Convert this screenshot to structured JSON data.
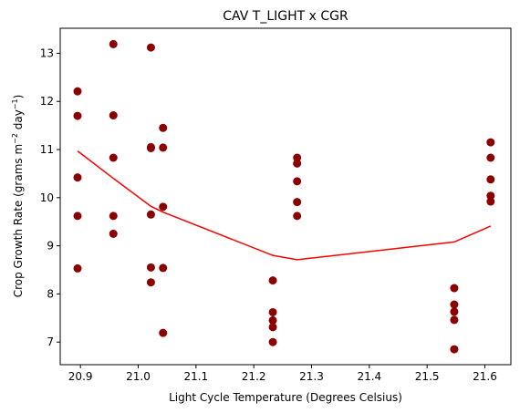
{
  "chart_data": {
    "type": "scatter",
    "title": "CAV T_LIGHT x CGR",
    "xlabel": "Light Cycle Temperature (Degrees Celsius)",
    "ylabel_main": "Crop Growth Rate (grams m",
    "ylabel_sup1": "−2",
    "ylabel_mid": " day",
    "ylabel_sup2": "−1",
    "ylabel_end": ")",
    "xlim": [
      20.865,
      21.645
    ],
    "ylim": [
      6.53,
      13.52
    ],
    "x_ticks": [
      20.9,
      21.0,
      21.1,
      21.2,
      21.3,
      21.4,
      21.5,
      21.6
    ],
    "x_tick_labels": [
      "20.9",
      "21.0",
      "21.1",
      "21.2",
      "21.3",
      "21.4",
      "21.5",
      "21.6"
    ],
    "y_ticks": [
      7,
      8,
      9,
      10,
      11,
      12,
      13
    ],
    "y_tick_labels": [
      "7",
      "8",
      "9",
      "10",
      "11",
      "12",
      "13"
    ],
    "grid": false,
    "series": [
      {
        "type": "scatter",
        "color": "#8b0000",
        "points": [
          [
            20.895,
            12.21
          ],
          [
            20.895,
            11.7
          ],
          [
            20.895,
            10.42
          ],
          [
            20.895,
            9.62
          ],
          [
            20.895,
            8.53
          ],
          [
            20.957,
            13.19
          ],
          [
            20.957,
            11.71
          ],
          [
            20.957,
            10.83
          ],
          [
            20.957,
            9.62
          ],
          [
            20.957,
            9.25
          ],
          [
            21.022,
            13.12
          ],
          [
            21.022,
            11.05
          ],
          [
            21.022,
            11.03
          ],
          [
            21.022,
            9.65
          ],
          [
            21.022,
            8.55
          ],
          [
            21.022,
            8.24
          ],
          [
            21.043,
            11.45
          ],
          [
            21.043,
            11.04
          ],
          [
            21.043,
            9.81
          ],
          [
            21.043,
            8.54
          ],
          [
            21.043,
            7.19
          ],
          [
            21.233,
            8.28
          ],
          [
            21.233,
            7.62
          ],
          [
            21.233,
            7.45
          ],
          [
            21.233,
            7.31
          ],
          [
            21.233,
            7.0
          ],
          [
            21.275,
            10.83
          ],
          [
            21.275,
            10.71
          ],
          [
            21.275,
            10.34
          ],
          [
            21.275,
            9.91
          ],
          [
            21.275,
            9.62
          ],
          [
            21.547,
            8.12
          ],
          [
            21.547,
            7.78
          ],
          [
            21.547,
            7.63
          ],
          [
            21.547,
            7.46
          ],
          [
            21.547,
            6.85
          ],
          [
            21.61,
            11.15
          ],
          [
            21.61,
            10.83
          ],
          [
            21.61,
            10.38
          ],
          [
            21.61,
            10.04
          ],
          [
            21.61,
            9.92
          ]
        ]
      },
      {
        "type": "line",
        "color": "#ff0000",
        "points": [
          [
            20.895,
            10.97
          ],
          [
            20.957,
            10.4
          ],
          [
            21.022,
            9.82
          ],
          [
            21.043,
            9.7
          ],
          [
            21.233,
            8.8
          ],
          [
            21.275,
            8.71
          ],
          [
            21.547,
            9.08
          ],
          [
            21.61,
            9.41
          ]
        ]
      }
    ]
  }
}
